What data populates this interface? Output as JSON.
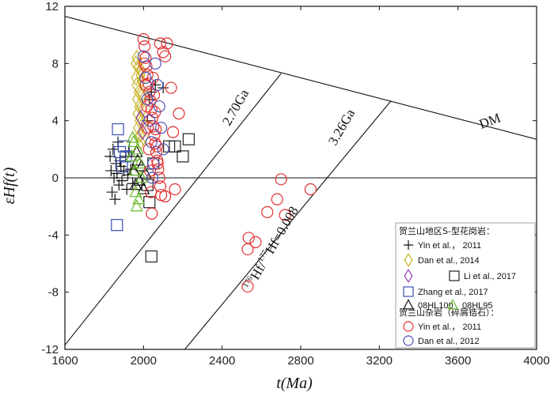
{
  "chart_data": {
    "type": "scatter",
    "xlabel": "t(Ma)",
    "ylabel": "εHf(t)",
    "xlim": [
      1600,
      4000
    ],
    "ylim": [
      -12,
      12
    ],
    "xticks": [
      "1600",
      "2000",
      "2400",
      "2800",
      "3200",
      "3600",
      "4000"
    ],
    "yticks": [
      "-12",
      "-8",
      "-4",
      "0",
      "4",
      "8",
      "12"
    ],
    "reference_lines": [
      {
        "label": "DM",
        "points": [
          [
            1600,
            11.3
          ],
          [
            4000,
            2.7
          ]
        ]
      },
      {
        "label": "2.70Ga",
        "points": [
          [
            1600,
            -11.7
          ],
          [
            2700,
            7.3
          ]
        ]
      },
      {
        "label": "3.26Ga",
        "points": [
          [
            2210,
            -12
          ],
          [
            3260,
            5.4
          ]
        ]
      },
      {
        "label": "",
        "points": [
          [
            1600,
            0
          ],
          [
            4000,
            0
          ]
        ]
      }
    ],
    "annotations": {
      "dm": "DM",
      "ga270": "2.70Ga",
      "ga326": "3.26Ga",
      "ratio_pre": "176",
      "ratio_mid": "Hf/",
      "ratio_sup2": "177",
      "ratio_post": "Hf=0.008"
    },
    "legend": {
      "title1": "贺兰山地区S-型花岗岩：",
      "title2": "贺兰山杂岩（碎屑锆石）：",
      "entries": [
        {
          "label": "Yin et al.， 2011",
          "marker": "plus",
          "color": "#111111"
        },
        {
          "label": "Dan et al., 2014",
          "marker": "diamond",
          "color": "#c8b42a"
        },
        {
          "label": "",
          "marker": "diamond",
          "color": "#9b3fb0"
        },
        {
          "label": "Li et al., 2017",
          "marker": "square",
          "color": "#222222"
        },
        {
          "label": "Zhang et al., 2017",
          "marker": "square",
          "color": "#3a4fb0"
        },
        {
          "label": "08HL100",
          "marker": "triangle",
          "color": "#111111"
        },
        {
          "label": "08HL95",
          "marker": "triangle",
          "color": "#6ab82a"
        },
        {
          "label": "Yin et al.， 2011",
          "marker": "circle",
          "color": "#e03030"
        },
        {
          "label": "Dan et al., 2012",
          "marker": "circle",
          "color": "#4a50b8"
        }
      ]
    },
    "series": [
      {
        "name": "Yin et al.， 2011 (S-type granite)",
        "marker": "plus",
        "color": "#111111",
        "points": [
          [
            1830,
            1.5
          ],
          [
            1835,
            0.5
          ],
          [
            1840,
            -1.0
          ],
          [
            1845,
            2.0
          ],
          [
            1850,
            0.0
          ],
          [
            1855,
            -1.5
          ],
          [
            1860,
            1.0
          ],
          [
            1865,
            0.3
          ],
          [
            1870,
            2.5
          ],
          [
            1875,
            -0.5
          ],
          [
            1880,
            1.2
          ],
          [
            1885,
            0.8
          ],
          [
            1890,
            -0.2
          ],
          [
            1900,
            0.5
          ],
          [
            1910,
            1.5
          ],
          [
            1915,
            -0.8
          ],
          [
            1920,
            0.2
          ],
          [
            1925,
            1.8
          ],
          [
            1935,
            0.6
          ],
          [
            1945,
            -0.4
          ],
          [
            2020,
            4.0
          ],
          [
            2030,
            5.5
          ],
          [
            2040,
            6.0
          ],
          [
            2060,
            6.5
          ],
          [
            2100,
            6.3
          ]
        ]
      },
      {
        "name": "Dan et al., 2014",
        "marker": "diamond",
        "color": "#c8b42a",
        "points": [
          [
            1960,
            8.0
          ],
          [
            1962,
            7.0
          ],
          [
            1965,
            6.5
          ],
          [
            1968,
            5.5
          ],
          [
            1970,
            4.5
          ],
          [
            1972,
            3.5
          ],
          [
            1975,
            6.0
          ],
          [
            1978,
            5.0
          ],
          [
            1980,
            4.0
          ],
          [
            1982,
            3.0
          ],
          [
            1985,
            2.5
          ],
          [
            1988,
            7.5
          ],
          [
            1990,
            6.8
          ],
          [
            1992,
            5.8
          ],
          [
            1995,
            4.8
          ],
          [
            1998,
            3.8
          ],
          [
            2000,
            2.8
          ],
          [
            1965,
            8.4
          ],
          [
            1975,
            7.8
          ],
          [
            1985,
            7.2
          ]
        ]
      },
      {
        "name": "Li et al., 2017 (diamond)",
        "marker": "diamond",
        "color": "#9b3fb0",
        "points": [
          [
            1985,
            4.2
          ],
          [
            1995,
            3.2
          ]
        ]
      },
      {
        "name": "Li et al., 2017",
        "marker": "square",
        "color": "#222222",
        "points": [
          [
            2040,
            -5.5
          ],
          [
            2030,
            -1.7
          ],
          [
            2130,
            2.2
          ],
          [
            2160,
            2.2
          ],
          [
            2200,
            1.5
          ],
          [
            2230,
            2.7
          ],
          [
            2050,
            1.0
          ],
          [
            2020,
            -0.5
          ]
        ]
      },
      {
        "name": "Zhang et al., 2017",
        "marker": "square",
        "color": "#3a4fb0",
        "points": [
          [
            1865,
            -3.3
          ],
          [
            1870,
            3.4
          ],
          [
            1880,
            1.8
          ],
          [
            1890,
            0.8
          ],
          [
            1900,
            2.2
          ],
          [
            1910,
            1.5
          ]
        ]
      },
      {
        "name": "08HL100",
        "marker": "triangle",
        "color": "#111111",
        "points": [
          [
            1950,
            0.5
          ],
          [
            1960,
            -0.5
          ],
          [
            1970,
            1.2
          ],
          [
            1980,
            -0.2
          ],
          [
            1990,
            0.8
          ],
          [
            2000,
            -0.8
          ],
          [
            2010,
            0.3
          ],
          [
            1965,
            1.8
          ]
        ]
      },
      {
        "name": "08HL95",
        "marker": "triangle",
        "color": "#6ab82a",
        "points": [
          [
            1940,
            1.5
          ],
          [
            1950,
            2.5
          ],
          [
            1955,
            0.5
          ],
          [
            1960,
            -1.0
          ],
          [
            1965,
            -2.0
          ],
          [
            1970,
            2.0
          ],
          [
            1975,
            -1.5
          ],
          [
            1980,
            1.0
          ],
          [
            1990,
            0.0
          ],
          [
            1945,
            2.8
          ]
        ]
      },
      {
        "name": "Yin et al.， 2011 (detrital zircon)",
        "marker": "circle",
        "color": "#e03030",
        "points": [
          [
            2000,
            9.7
          ],
          [
            2005,
            9.2
          ],
          [
            2010,
            8.4
          ],
          [
            2015,
            7.8
          ],
          [
            2020,
            7.2
          ],
          [
            2025,
            6.6
          ],
          [
            2030,
            6.0
          ],
          [
            2035,
            5.4
          ],
          [
            2040,
            4.8
          ],
          [
            2045,
            4.2
          ],
          [
            2050,
            3.6
          ],
          [
            2055,
            3.0
          ],
          [
            2060,
            2.4
          ],
          [
            2065,
            1.8
          ],
          [
            2070,
            1.2
          ],
          [
            2075,
            0.6
          ],
          [
            2080,
            0.0
          ],
          [
            2085,
            -0.6
          ],
          [
            2090,
            -1.2
          ],
          [
            2005,
            8.0
          ],
          [
            2012,
            6.5
          ],
          [
            2018,
            5.0
          ],
          [
            2022,
            3.5
          ],
          [
            2028,
            2.0
          ],
          [
            2033,
            0.5
          ],
          [
            2038,
            -1.0
          ],
          [
            2042,
            -2.5
          ],
          [
            2048,
            7.0
          ],
          [
            2053,
            5.8
          ],
          [
            2058,
            4.6
          ],
          [
            2062,
            3.4
          ],
          [
            2068,
            2.2
          ],
          [
            2072,
            1.0
          ],
          [
            2085,
            9.4
          ],
          [
            2100,
            8.8
          ],
          [
            2110,
            8.5
          ],
          [
            2120,
            9.4
          ],
          [
            2140,
            6.3
          ],
          [
            2150,
            3.2
          ],
          [
            2160,
            -0.8
          ],
          [
            2180,
            4.5
          ],
          [
            2110,
            -1.3
          ],
          [
            2530,
            -7.6
          ],
          [
            2530,
            -5.0
          ],
          [
            2535,
            -4.2
          ],
          [
            2570,
            -4.5
          ],
          [
            2630,
            -2.4
          ],
          [
            2680,
            -1.5
          ],
          [
            2700,
            -0.1
          ],
          [
            2720,
            -2.6
          ],
          [
            2850,
            -0.8
          ]
        ]
      },
      {
        "name": "Dan et al., 2012",
        "marker": "circle",
        "color": "#4a50b8",
        "points": [
          [
            2000,
            8.5
          ],
          [
            2010,
            7.0
          ],
          [
            2020,
            5.5
          ],
          [
            2030,
            4.0
          ],
          [
            2040,
            2.5
          ],
          [
            2050,
            1.0
          ],
          [
            2060,
            8.0
          ],
          [
            2070,
            6.5
          ],
          [
            2080,
            5.0
          ],
          [
            2090,
            3.5
          ],
          [
            2100,
            2.0
          ],
          [
            2045,
            0.0
          ]
        ]
      }
    ]
  }
}
